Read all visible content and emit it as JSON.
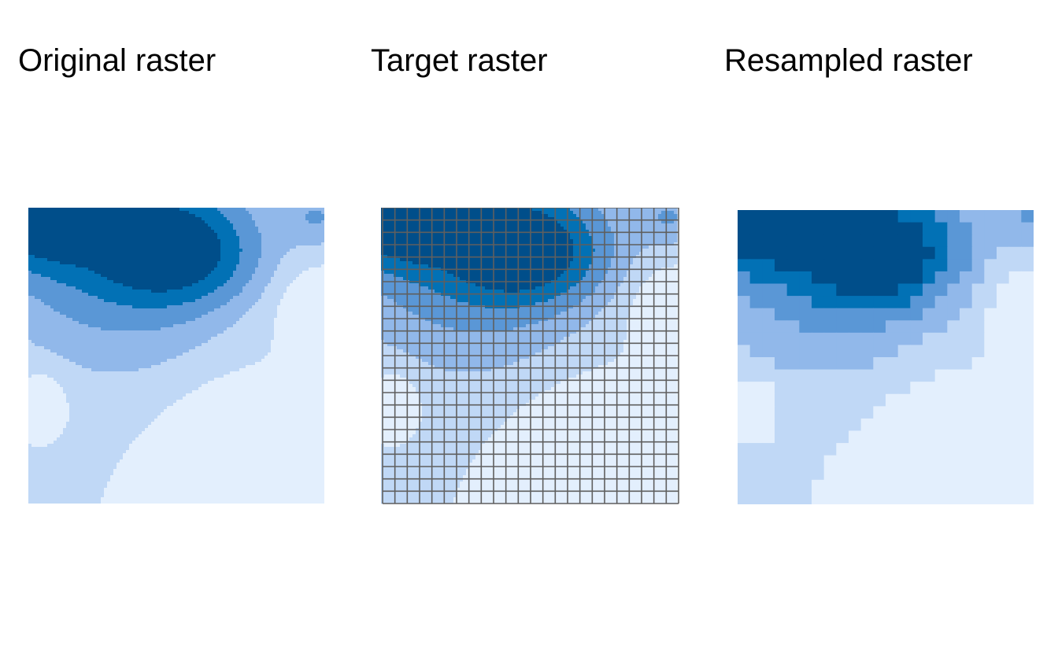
{
  "panels": {
    "original": {
      "title": "Original raster"
    },
    "target": {
      "title": "Target raster"
    },
    "resampled": {
      "title": "Resampled raster"
    }
  },
  "palette": [
    "#e3effd",
    "#c0d8f6",
    "#91b8ea",
    "#5a97d6",
    "#0271b5",
    "#004e8a"
  ],
  "grid_color": "#5f5f5f"
}
